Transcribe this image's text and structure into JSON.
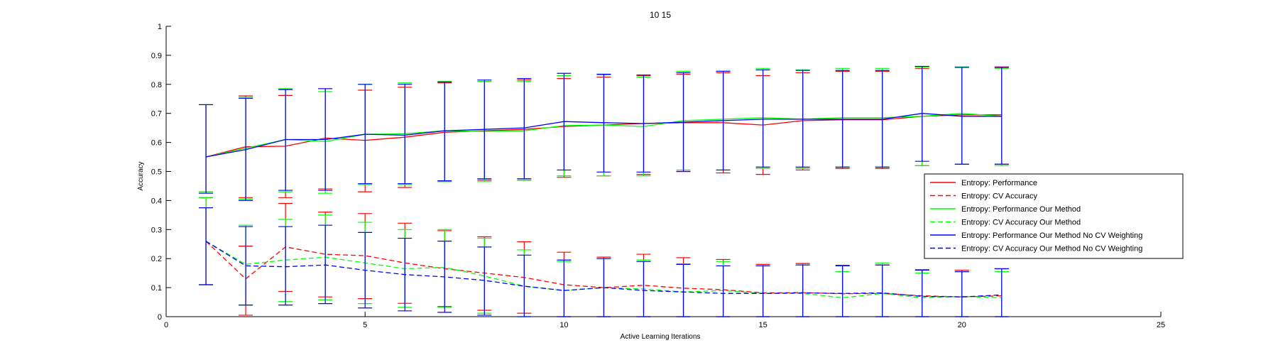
{
  "chart_data": {
    "type": "line",
    "title": "10  15",
    "xlabel": "Active Learning Iterations",
    "ylabel": "Accuracy",
    "xlim": [
      0,
      25
    ],
    "ylim": [
      0,
      1
    ],
    "xticks": [
      0,
      5,
      10,
      15,
      20,
      25
    ],
    "yticks": [
      0,
      0.1,
      0.2,
      0.3,
      0.4,
      0.5,
      0.6,
      0.7,
      0.8,
      0.9,
      1
    ],
    "ytick_labels": [
      "0",
      "0.1",
      "0.2",
      "0.3",
      "0.4",
      "0.5",
      "0.6",
      "0.7",
      "0.8",
      "0.9",
      "1"
    ],
    "grid": false,
    "legend_position": "right",
    "x": [
      1,
      2,
      3,
      4,
      5,
      6,
      7,
      8,
      9,
      10,
      11,
      12,
      13,
      14,
      15,
      16,
      17,
      18,
      19,
      20,
      21
    ],
    "series": [
      {
        "name": "Entropy: Performance",
        "color": "#ff0000",
        "dash": "solid",
        "values": [
          0.55,
          0.585,
          0.587,
          0.615,
          0.607,
          0.618,
          0.635,
          0.64,
          0.645,
          0.655,
          0.66,
          0.665,
          0.668,
          0.668,
          0.66,
          0.675,
          0.678,
          0.678,
          0.69,
          0.695,
          0.695
        ],
        "err_low": [
          0.43,
          0.41,
          0.41,
          0.44,
          0.43,
          0.445,
          0.465,
          0.47,
          0.47,
          0.48,
          0.485,
          0.49,
          0.5,
          0.495,
          0.49,
          0.505,
          0.51,
          0.51,
          0.52,
          0.525,
          0.525
        ],
        "err_high": [
          0.73,
          0.76,
          0.762,
          0.785,
          0.78,
          0.79,
          0.805,
          0.81,
          0.815,
          0.82,
          0.825,
          0.83,
          0.835,
          0.84,
          0.83,
          0.84,
          0.845,
          0.845,
          0.855,
          0.86,
          0.86
        ]
      },
      {
        "name": "Entropy: CV Accuracy",
        "color": "#ff0000",
        "dash": "dashed",
        "values": [
          0.26,
          0.13,
          0.24,
          0.215,
          0.21,
          0.185,
          0.165,
          0.15,
          0.135,
          0.11,
          0.1,
          0.108,
          0.098,
          0.093,
          0.082,
          0.083,
          0.079,
          0.08,
          0.072,
          0.068,
          0.072
        ],
        "err_low": [
          0.11,
          0.005,
          0.087,
          0.068,
          0.062,
          0.046,
          0.035,
          0.022,
          0.012,
          0.0,
          0.0,
          0.0,
          0.0,
          0.0,
          0.0,
          0.0,
          0.0,
          0.0,
          0.0,
          0.0,
          0.0
        ],
        "err_high": [
          0.41,
          0.243,
          0.39,
          0.36,
          0.355,
          0.322,
          0.296,
          0.275,
          0.258,
          0.222,
          0.205,
          0.215,
          0.203,
          0.197,
          0.18,
          0.183,
          0.177,
          0.178,
          0.162,
          0.16,
          0.165
        ]
      },
      {
        "name": "Entropy: Performance Our Method",
        "color": "#00ff00",
        "dash": "solid",
        "values": [
          0.55,
          0.58,
          0.61,
          0.603,
          0.628,
          0.63,
          0.64,
          0.638,
          0.64,
          0.658,
          0.66,
          0.655,
          0.675,
          0.68,
          0.685,
          0.68,
          0.685,
          0.685,
          0.69,
          0.7,
          0.69
        ],
        "err_low": [
          0.43,
          0.405,
          0.43,
          0.425,
          0.455,
          0.455,
          0.465,
          0.465,
          0.47,
          0.485,
          0.485,
          0.485,
          0.505,
          0.505,
          0.51,
          0.51,
          0.515,
          0.515,
          0.52,
          0.525,
          0.52
        ],
        "err_high": [
          0.73,
          0.755,
          0.785,
          0.775,
          0.8,
          0.805,
          0.81,
          0.81,
          0.81,
          0.83,
          0.832,
          0.825,
          0.845,
          0.845,
          0.855,
          0.85,
          0.855,
          0.855,
          0.86,
          0.86,
          0.855
        ]
      },
      {
        "name": "Entropy: CV Accuracy Our Method",
        "color": "#00ff00",
        "dash": "dashed",
        "values": [
          0.26,
          0.18,
          0.195,
          0.205,
          0.185,
          0.165,
          0.17,
          0.14,
          0.105,
          0.09,
          0.1,
          0.095,
          0.085,
          0.09,
          0.08,
          0.08,
          0.065,
          0.08,
          0.065,
          0.07,
          0.065
        ],
        "err_low": [
          0.11,
          0.04,
          0.052,
          0.058,
          0.045,
          0.032,
          0.032,
          0.012,
          0.0,
          0.0,
          0.0,
          0.0,
          0.0,
          0.0,
          0.0,
          0.0,
          0.0,
          0.0,
          0.0,
          0.0,
          0.0
        ],
        "err_high": [
          0.41,
          0.315,
          0.335,
          0.35,
          0.325,
          0.3,
          0.3,
          0.27,
          0.23,
          0.19,
          0.2,
          0.195,
          0.182,
          0.19,
          0.175,
          0.178,
          0.155,
          0.185,
          0.15,
          0.155,
          0.155
        ]
      },
      {
        "name": "Entropy: Performance Our Method No CV Weighting",
        "color": "#0000ff",
        "dash": "solid",
        "values": [
          0.55,
          0.575,
          0.61,
          0.61,
          0.628,
          0.625,
          0.64,
          0.645,
          0.65,
          0.672,
          0.668,
          0.665,
          0.67,
          0.675,
          0.68,
          0.68,
          0.68,
          0.68,
          0.7,
          0.69,
          0.69
        ],
        "err_low": [
          0.425,
          0.4,
          0.435,
          0.435,
          0.458,
          0.458,
          0.468,
          0.475,
          0.475,
          0.505,
          0.498,
          0.498,
          0.5,
          0.505,
          0.515,
          0.515,
          0.515,
          0.515,
          0.535,
          0.525,
          0.525
        ],
        "err_high": [
          0.73,
          0.752,
          0.782,
          0.785,
          0.8,
          0.8,
          0.808,
          0.815,
          0.82,
          0.838,
          0.835,
          0.832,
          0.84,
          0.845,
          0.85,
          0.848,
          0.848,
          0.848,
          0.862,
          0.858,
          0.858
        ]
      },
      {
        "name": "Entropy: CV Accuracy Our Method No CV Weighting",
        "color": "#0000ff",
        "dash": "dashed",
        "values": [
          0.26,
          0.175,
          0.172,
          0.178,
          0.16,
          0.145,
          0.137,
          0.125,
          0.105,
          0.09,
          0.1,
          0.09,
          0.085,
          0.08,
          0.08,
          0.082,
          0.08,
          0.082,
          0.07,
          0.068,
          0.075
        ],
        "err_low": [
          0.11,
          0.04,
          0.04,
          0.045,
          0.03,
          0.02,
          0.015,
          0.005,
          0.0,
          0.0,
          0.0,
          0.0,
          0.0,
          0.0,
          0.0,
          0.0,
          0.0,
          0.0,
          0.0,
          0.0,
          0.0
        ],
        "err_high": [
          0.375,
          0.31,
          0.31,
          0.315,
          0.29,
          0.27,
          0.26,
          0.24,
          0.212,
          0.195,
          0.2,
          0.19,
          0.18,
          0.175,
          0.175,
          0.178,
          0.175,
          0.178,
          0.16,
          0.155,
          0.165
        ]
      }
    ]
  }
}
